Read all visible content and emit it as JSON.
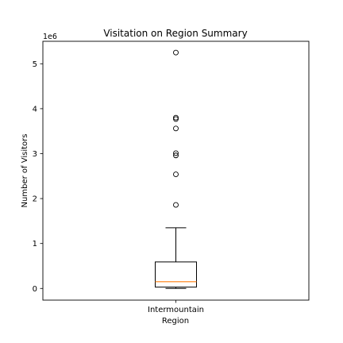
{
  "chart_data": {
    "type": "box",
    "title": "Visitation on Region Summary",
    "xlabel": "Region",
    "ylabel": "Number of Visitors",
    "y_offset_label": "1e6",
    "categories": [
      "Intermountain"
    ],
    "ylim": [
      -260000,
      5500000
    ],
    "yticks": [
      0,
      1000000,
      2000000,
      3000000,
      4000000,
      5000000
    ],
    "ytick_labels": [
      "0",
      "1",
      "2",
      "3",
      "4",
      "5"
    ],
    "grid": false,
    "boxes": [
      {
        "category": "Intermountain",
        "whisker_low": 0,
        "q1": 30000,
        "median": 150000,
        "q3": 590000,
        "whisker_high": 1350000,
        "outliers": [
          1860000,
          2540000,
          2960000,
          3010000,
          3560000,
          3770000,
          3800000,
          5250000
        ]
      }
    ],
    "colors": {
      "median": "#ff7f0e",
      "box": "#000000",
      "axes": "#000000"
    }
  }
}
